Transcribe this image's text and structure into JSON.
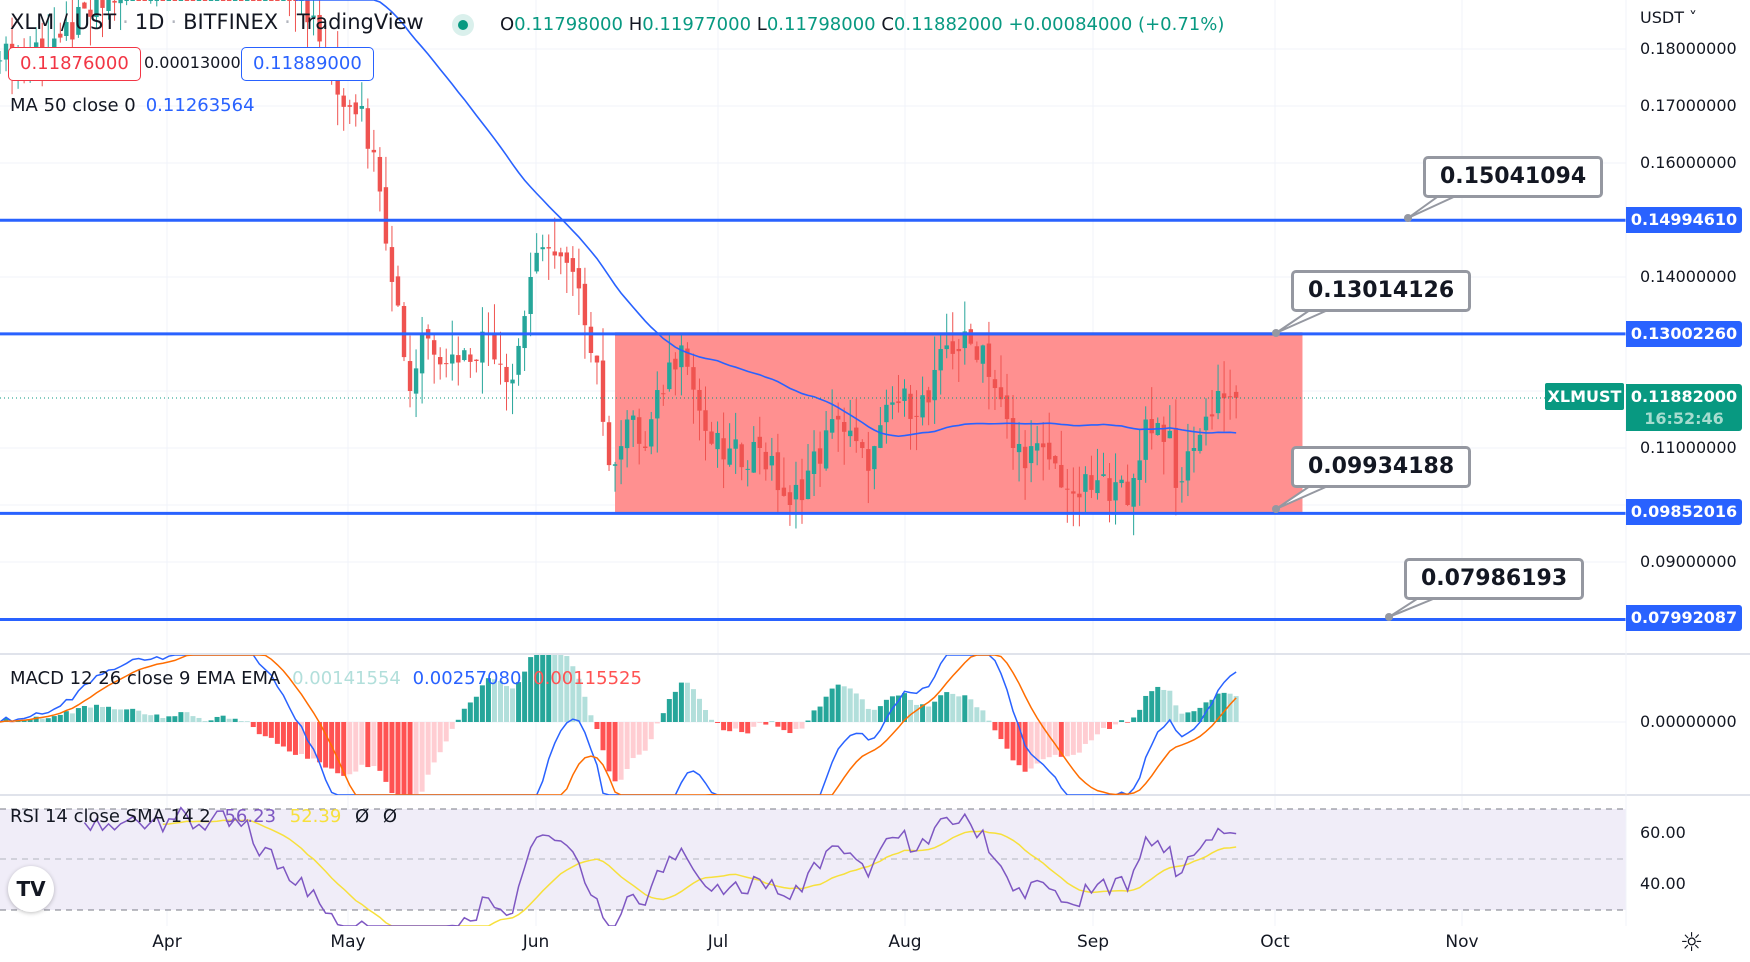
{
  "header": {
    "symbol": "XLM / UST",
    "interval": "1D",
    "exchange": "BITFINEX",
    "source": "TradingView",
    "ohlc": {
      "o_label": "O",
      "o": "0.11798000",
      "h_label": "H",
      "h": "0.11977000",
      "l_label": "L",
      "l": "0.11798000",
      "c_label": "C",
      "c": "0.11882000",
      "change": "+0.00084000 (+0.71%)"
    },
    "bid": "0.11876000",
    "spread": "0.00013000",
    "ask": "0.11889000"
  },
  "indicators": {
    "ma": {
      "label": "MA 50 close 0",
      "value": "0.11263564"
    },
    "macd": {
      "label": "MACD 12 26 close 9 EMA EMA",
      "hist": "0.00141554",
      "macd": "0.00257080",
      "signal": "0.00115525"
    },
    "rsi": {
      "label": "RSI 14 close SMA 14 2",
      "rsi": "56.23",
      "sma": "52.39",
      "extra1": "Ø",
      "extra2": "Ø"
    }
  },
  "price_axis": {
    "currency": "USDT ˅",
    "ticks": [
      "0.18000000",
      "0.17000000",
      "0.16000000",
      "0.14000000",
      "0.11000000",
      "0.09000000"
    ],
    "macd_ticks": [
      "0.00000000"
    ],
    "rsi_ticks": [
      "60.00",
      "40.00"
    ]
  },
  "levels": [
    {
      "value": "0.14994610",
      "callout": "0.15041094"
    },
    {
      "value": "0.13002260",
      "callout": "0.13014126"
    },
    {
      "value": "0.09852016",
      "callout": "0.09934188"
    },
    {
      "value": "0.07992087",
      "callout": "0.07986193"
    }
  ],
  "last_price": {
    "symbol": "XLMUST",
    "price": "0.11882000",
    "countdown": "16:52:46"
  },
  "time_axis": [
    "Apr",
    "May",
    "Jun",
    "Jul",
    "Aug",
    "Sep",
    "Oct",
    "Nov"
  ],
  "colors": {
    "up": "#26a69a",
    "down": "#ef5350",
    "level": "#2962ff",
    "ma": "#2962ff",
    "range_box": "#ff8a8a",
    "rsi": "#7e57c2",
    "rsi_sma": "#f7e03c",
    "macd": "#2962ff",
    "signal": "#ff6d00"
  },
  "chart_data": {
    "type": "candlestick",
    "title": "XLM / UST · 1D · BITFINEX",
    "x_start": "Mar 4",
    "x_end": "Sep 25",
    "ylim": [
      0.07,
      0.19
    ],
    "close_keyframes": [
      [
        0,
        0.178
      ],
      [
        10,
        0.182
      ],
      [
        20,
        0.19
      ],
      [
        28,
        0.195
      ],
      [
        40,
        0.2
      ],
      [
        50,
        0.19
      ],
      [
        56,
        0.172
      ],
      [
        60,
        0.17
      ],
      [
        63,
        0.155
      ],
      [
        66,
        0.135
      ],
      [
        68,
        0.12
      ],
      [
        70,
        0.13
      ],
      [
        76,
        0.125
      ],
      [
        81,
        0.13
      ],
      [
        85,
        0.122
      ],
      [
        88,
        0.14
      ],
      [
        91,
        0.145
      ],
      [
        96,
        0.138
      ],
      [
        99,
        0.125
      ],
      [
        101,
        0.107
      ],
      [
        104,
        0.115
      ],
      [
        107,
        0.11
      ],
      [
        111,
        0.125
      ],
      [
        113,
        0.128
      ],
      [
        117,
        0.113
      ],
      [
        120,
        0.108
      ],
      [
        126,
        0.11
      ],
      [
        131,
        0.1
      ],
      [
        139,
        0.115
      ],
      [
        144,
        0.106
      ],
      [
        148,
        0.118
      ],
      [
        154,
        0.118
      ],
      [
        157,
        0.128
      ],
      [
        163,
        0.128
      ],
      [
        168,
        0.11
      ],
      [
        174,
        0.108
      ],
      [
        178,
        0.102
      ],
      [
        185,
        0.104
      ],
      [
        187,
        0.1
      ],
      [
        190,
        0.115
      ],
      [
        194,
        0.113
      ],
      [
        195,
        0.103
      ],
      [
        198,
        0.11
      ],
      [
        202,
        0.12
      ],
      [
        204,
        0.119
      ],
      [
        205,
        0.1188
      ]
    ],
    "range_box": {
      "from_day": 101,
      "to_day": 216,
      "top": 0.13002,
      "bottom": 0.09852
    },
    "indicators": [
      "MA 50",
      "MACD 12 26 9",
      "RSI 14"
    ]
  }
}
